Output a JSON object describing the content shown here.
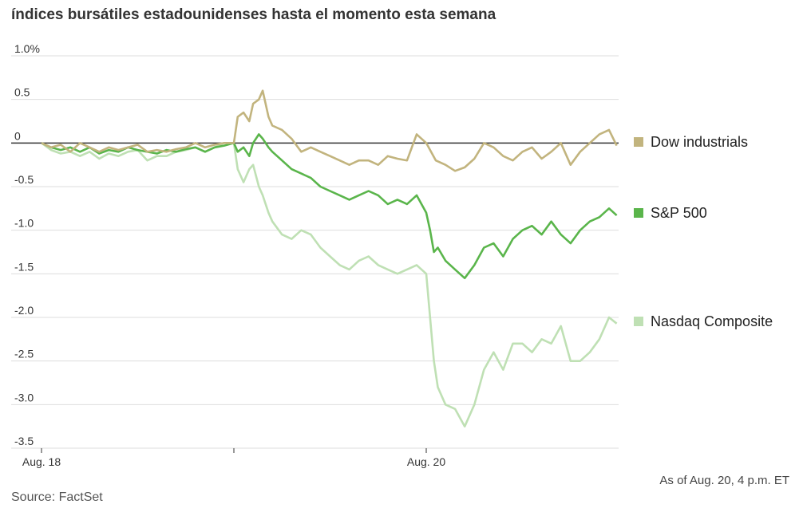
{
  "title": "índices bursátiles estadounidenses hasta el momento esta semana",
  "note": "As of Aug. 20, 4 p.m. ET",
  "source": "Source: FactSet",
  "chart_data": {
    "type": "line",
    "title": "índices bursátiles estadounidenses hasta el momento esta semana",
    "xlabel": "",
    "ylabel": "",
    "x_tick_labels": [
      "Aug. 18",
      "",
      "Aug. 20"
    ],
    "y_ticks": [
      1.0,
      0.5,
      0,
      -0.5,
      -1.0,
      -1.5,
      -2.0,
      -2.5,
      -3.0,
      -3.5
    ],
    "y_tick_labels": [
      "1.0%",
      "0.5",
      "0",
      "-0.5",
      "-1.0",
      "-1.5",
      "-2.0",
      "-2.5",
      "-3.0",
      "-3.5"
    ],
    "ylim": [
      -3.5,
      1.0
    ],
    "xlim": [
      0,
      3
    ],
    "grid": true,
    "legend": "right",
    "series": [
      {
        "name": "Dow industrials",
        "color": "#c2b47e",
        "x": [
          0,
          0.05,
          0.1,
          0.15,
          0.2,
          0.25,
          0.3,
          0.35,
          0.4,
          0.45,
          0.5,
          0.55,
          0.6,
          0.65,
          0.7,
          0.75,
          0.8,
          0.85,
          0.9,
          0.95,
          1.0,
          1.02,
          1.05,
          1.08,
          1.1,
          1.13,
          1.15,
          1.18,
          1.2,
          1.25,
          1.3,
          1.35,
          1.4,
          1.45,
          1.5,
          1.55,
          1.6,
          1.65,
          1.7,
          1.75,
          1.8,
          1.85,
          1.9,
          1.95,
          2.0,
          2.05,
          2.1,
          2.15,
          2.2,
          2.25,
          2.3,
          2.35,
          2.4,
          2.45,
          2.5,
          2.55,
          2.6,
          2.65,
          2.7,
          2.75,
          2.8,
          2.85,
          2.9,
          2.95,
          2.99
        ],
        "y": [
          0.0,
          -0.05,
          -0.02,
          -0.1,
          0.0,
          -0.05,
          -0.1,
          -0.05,
          -0.08,
          -0.05,
          -0.02,
          -0.1,
          -0.08,
          -0.1,
          -0.07,
          -0.05,
          0.0,
          -0.05,
          -0.02,
          0.0,
          0.0,
          0.3,
          0.35,
          0.25,
          0.45,
          0.5,
          0.6,
          0.3,
          0.2,
          0.15,
          0.05,
          -0.1,
          -0.05,
          -0.1,
          -0.15,
          -0.2,
          -0.25,
          -0.2,
          -0.2,
          -0.25,
          -0.15,
          -0.18,
          -0.2,
          0.1,
          0.0,
          -0.2,
          -0.25,
          -0.32,
          -0.28,
          -0.18,
          0.0,
          -0.05,
          -0.15,
          -0.2,
          -0.1,
          -0.05,
          -0.18,
          -0.1,
          0.0,
          -0.25,
          -0.1,
          0.0,
          0.1,
          0.15,
          -0.03
        ]
      },
      {
        "name": "S&P 500",
        "color": "#5ab54b",
        "x": [
          0,
          0.05,
          0.1,
          0.15,
          0.2,
          0.25,
          0.3,
          0.35,
          0.4,
          0.45,
          0.5,
          0.55,
          0.6,
          0.65,
          0.7,
          0.75,
          0.8,
          0.85,
          0.9,
          0.95,
          1.0,
          1.02,
          1.05,
          1.08,
          1.1,
          1.13,
          1.15,
          1.18,
          1.2,
          1.25,
          1.3,
          1.35,
          1.4,
          1.45,
          1.5,
          1.55,
          1.6,
          1.65,
          1.7,
          1.75,
          1.8,
          1.85,
          1.9,
          1.95,
          2.0,
          2.02,
          2.04,
          2.06,
          2.1,
          2.15,
          2.2,
          2.25,
          2.3,
          2.35,
          2.4,
          2.45,
          2.5,
          2.55,
          2.6,
          2.65,
          2.7,
          2.75,
          2.8,
          2.85,
          2.9,
          2.95,
          2.99
        ],
        "y": [
          0.0,
          -0.05,
          -0.08,
          -0.05,
          -0.1,
          -0.05,
          -0.12,
          -0.08,
          -0.1,
          -0.05,
          -0.08,
          -0.1,
          -0.12,
          -0.08,
          -0.1,
          -0.07,
          -0.05,
          -0.1,
          -0.05,
          -0.03,
          0.0,
          -0.1,
          -0.05,
          -0.15,
          0.0,
          0.1,
          0.05,
          -0.05,
          -0.1,
          -0.2,
          -0.3,
          -0.35,
          -0.4,
          -0.5,
          -0.55,
          -0.6,
          -0.65,
          -0.6,
          -0.55,
          -0.6,
          -0.7,
          -0.65,
          -0.7,
          -0.6,
          -0.8,
          -1.0,
          -1.25,
          -1.2,
          -1.35,
          -1.45,
          -1.55,
          -1.4,
          -1.2,
          -1.15,
          -1.3,
          -1.1,
          -1.0,
          -0.95,
          -1.05,
          -0.9,
          -1.05,
          -1.15,
          -1.0,
          -0.9,
          -0.85,
          -0.75,
          -0.83
        ]
      },
      {
        "name": "Nasdaq Composite",
        "color": "#bfe0b4",
        "x": [
          0,
          0.05,
          0.1,
          0.15,
          0.2,
          0.25,
          0.3,
          0.35,
          0.4,
          0.45,
          0.5,
          0.55,
          0.6,
          0.65,
          0.7,
          0.75,
          0.8,
          0.85,
          0.9,
          0.95,
          1.0,
          1.02,
          1.05,
          1.08,
          1.1,
          1.13,
          1.15,
          1.18,
          1.2,
          1.25,
          1.3,
          1.35,
          1.4,
          1.45,
          1.5,
          1.55,
          1.6,
          1.65,
          1.7,
          1.75,
          1.8,
          1.85,
          1.9,
          1.95,
          2.0,
          2.02,
          2.04,
          2.06,
          2.1,
          2.15,
          2.2,
          2.25,
          2.3,
          2.35,
          2.4,
          2.45,
          2.5,
          2.55,
          2.6,
          2.65,
          2.7,
          2.75,
          2.8,
          2.85,
          2.9,
          2.95,
          2.99
        ],
        "y": [
          0.0,
          -0.08,
          -0.12,
          -0.1,
          -0.15,
          -0.1,
          -0.18,
          -0.12,
          -0.15,
          -0.1,
          -0.08,
          -0.2,
          -0.15,
          -0.15,
          -0.1,
          -0.08,
          -0.05,
          -0.1,
          -0.05,
          0.0,
          0.0,
          -0.3,
          -0.45,
          -0.3,
          -0.25,
          -0.5,
          -0.6,
          -0.8,
          -0.9,
          -1.05,
          -1.1,
          -1.0,
          -1.05,
          -1.2,
          -1.3,
          -1.4,
          -1.45,
          -1.35,
          -1.3,
          -1.4,
          -1.45,
          -1.5,
          -1.45,
          -1.4,
          -1.5,
          -2.0,
          -2.5,
          -2.8,
          -3.0,
          -3.05,
          -3.25,
          -3.0,
          -2.6,
          -2.4,
          -2.6,
          -2.3,
          -2.3,
          -2.4,
          -2.25,
          -2.3,
          -2.1,
          -2.5,
          -2.5,
          -2.4,
          -2.25,
          -2.0,
          -2.07
        ]
      }
    ]
  }
}
